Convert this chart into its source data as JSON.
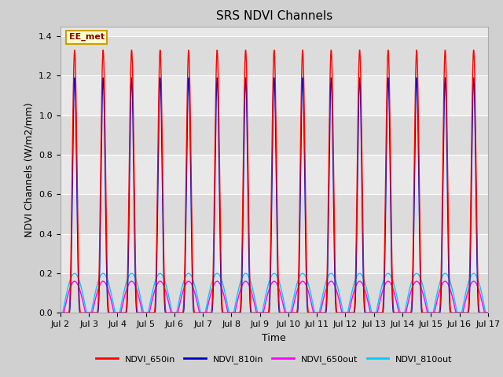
{
  "title": "SRS NDVI Channels",
  "xlabel": "Time",
  "ylabel": "NDVI Channels (W/m2/mm)",
  "ylim": [
    0.0,
    1.45
  ],
  "xlim_start": 2,
  "xlim_end": 17,
  "x_tick_labels": [
    "Jul 2",
    "Jul 3",
    "Jul 4",
    "Jul 5",
    "Jul 6",
    "Jul 7",
    "Jul 8",
    "Jul 9",
    "Jul 10",
    "Jul 11",
    "Jul 12",
    "Jul 13",
    "Jul 14",
    "Jul 15",
    "Jul 16",
    "Jul 17"
  ],
  "annotation_text": "EE_met",
  "line_colors": {
    "NDVI_650in": "#ff0000",
    "NDVI_810in": "#0000cc",
    "NDVI_650out": "#ff00ff",
    "NDVI_810out": "#00ccff"
  },
  "num_days": 15,
  "day_start": 2,
  "peak_650in": 1.33,
  "peak_810in": 1.19,
  "peak_650out": 0.16,
  "peak_810out": 0.2,
  "samples_per_day": 500,
  "band_colors": [
    "#dcdcdc",
    "#e8e8e8"
  ],
  "fig_bg": "#d0d0d0",
  "plot_bg": "#e8e8e8"
}
